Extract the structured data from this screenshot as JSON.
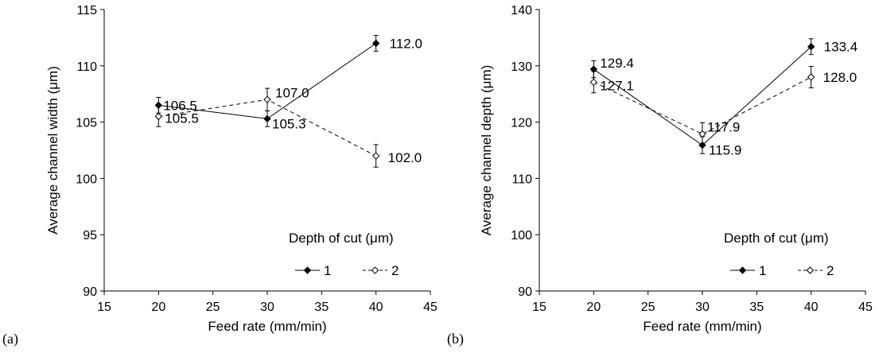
{
  "chart_data": [
    {
      "type": "line",
      "panel_label": "(a)",
      "xlabel": "Feed rate (mm/min)",
      "ylabel": "Average channel width (μm)",
      "xlim": [
        15,
        45
      ],
      "ylim": [
        90,
        115
      ],
      "xticks": [
        15,
        20,
        25,
        30,
        35,
        40,
        45
      ],
      "yticks": [
        90,
        95,
        100,
        105,
        110,
        115
      ],
      "x": [
        20,
        30,
        40
      ],
      "legend_title": "Depth of cut (μm)",
      "legend_position": "bottom-right",
      "grid": false,
      "series": [
        {
          "name": "1",
          "values": [
            106.5,
            105.3,
            112.0
          ],
          "labels": [
            "106.5",
            "105.3",
            "112.0"
          ],
          "errors": [
            0.7,
            0.7,
            0.7
          ],
          "marker": "filled-diamond",
          "line": "solid"
        },
        {
          "name": "2",
          "values": [
            105.5,
            107.0,
            102.0
          ],
          "labels": [
            "105.5",
            "107.0",
            "102.0"
          ],
          "errors": [
            0.9,
            1.0,
            1.0
          ],
          "marker": "open-diamond",
          "line": "dashed"
        }
      ]
    },
    {
      "type": "line",
      "panel_label": "(b)",
      "xlabel": "Feed rate (mm/min)",
      "ylabel": "Average channel depth (μm)",
      "xlim": [
        15,
        45
      ],
      "ylim": [
        90,
        140
      ],
      "xticks": [
        15,
        20,
        25,
        30,
        35,
        40,
        45
      ],
      "yticks": [
        90,
        100,
        110,
        120,
        130,
        140
      ],
      "x": [
        20,
        30,
        40
      ],
      "legend_title": "Depth of cut (μm)",
      "legend_position": "bottom-right",
      "grid": false,
      "series": [
        {
          "name": "1",
          "values": [
            129.4,
            115.9,
            133.4
          ],
          "labels": [
            "129.4",
            "115.9",
            "133.4"
          ],
          "errors": [
            1.5,
            1.5,
            1.4
          ],
          "marker": "filled-diamond",
          "line": "solid"
        },
        {
          "name": "2",
          "values": [
            127.1,
            117.9,
            128.0
          ],
          "labels": [
            "127.1",
            "117.9",
            "128.0"
          ],
          "errors": [
            1.9,
            2.0,
            1.9
          ],
          "marker": "open-diamond",
          "line": "dashed"
        }
      ]
    }
  ]
}
